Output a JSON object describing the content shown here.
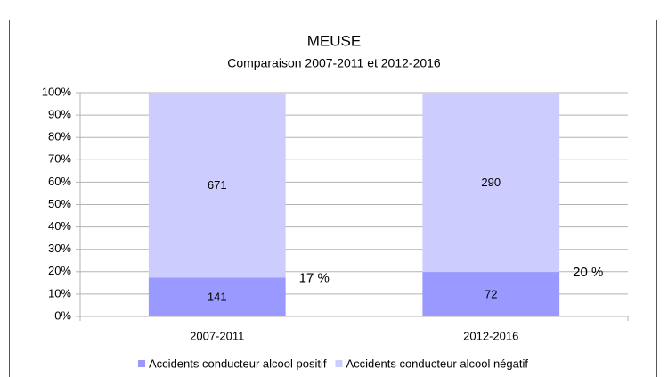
{
  "chart_data": {
    "type": "bar",
    "stacked": "percent",
    "title": "MEUSE",
    "subtitle": "Comparaison 2007-2011 et 2012-2016",
    "categories": [
      "2007-2011",
      "2012-2016"
    ],
    "series": [
      {
        "name": "Accidents conducteur alcool positif",
        "color": "#9999ff",
        "values": [
          141,
          72
        ]
      },
      {
        "name": "Accidents conducteur alcool négatif",
        "color": "#ccccff",
        "values": [
          671,
          290
        ]
      }
    ],
    "annotations": [
      "17 %",
      "20 %"
    ],
    "ylim": [
      0,
      100
    ],
    "yticks": [
      {
        "value": 0,
        "label": "0%"
      },
      {
        "value": 10,
        "label": "10%"
      },
      {
        "value": 20,
        "label": "20%"
      },
      {
        "value": 30,
        "label": "30%"
      },
      {
        "value": 40,
        "label": "40%"
      },
      {
        "value": 50,
        "label": "50%"
      },
      {
        "value": 60,
        "label": "60%"
      },
      {
        "value": 70,
        "label": "70%"
      },
      {
        "value": 80,
        "label": "80%"
      },
      {
        "value": 90,
        "label": "90%"
      },
      {
        "value": 100,
        "label": "100%"
      }
    ],
    "grid": true,
    "legend": "bottom"
  }
}
